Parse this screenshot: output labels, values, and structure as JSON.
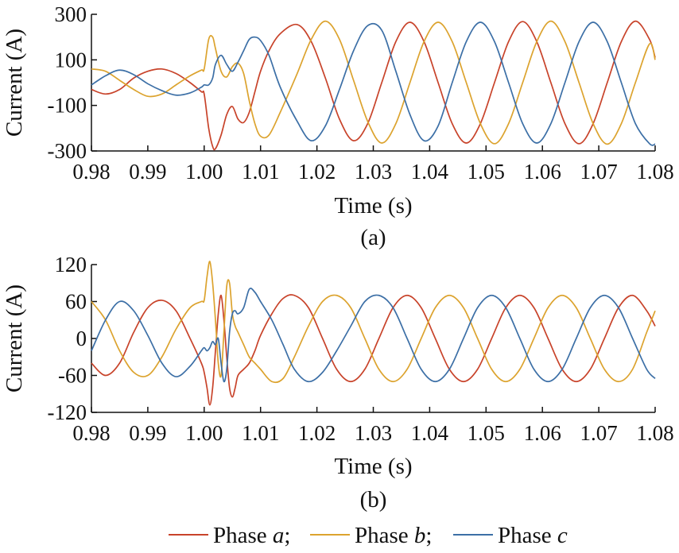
{
  "figure": {
    "legend_placement": "bottom-center",
    "legend": [
      {
        "label": "Phase ",
        "var": "a",
        "sep": ";",
        "color": "#c8432a"
      },
      {
        "label": "Phase ",
        "var": "b",
        "sep": ";",
        "color": "#dca32e"
      },
      {
        "label": "Phase ",
        "var": "c",
        "sep": "",
        "color": "#3c6fa6"
      }
    ]
  },
  "chart_data": [
    {
      "type": "line",
      "caption": "(a)",
      "xlabel": "Time (s)",
      "ylabel": "Current (A)",
      "xlim": [
        0.98,
        1.08
      ],
      "ylim": [
        -300,
        300
      ],
      "xticks": [
        "0.98",
        "0.99",
        "1.00",
        "1.01",
        "1.02",
        "1.03",
        "1.04",
        "1.05",
        "1.06",
        "1.07",
        "1.08"
      ],
      "yticks": [
        "300",
        "100",
        "-100",
        "-300"
      ],
      "ytick_values": [
        300,
        100,
        -100,
        -300
      ],
      "grid": false,
      "series": [
        {
          "name": "Phase a",
          "color": "#c8432a",
          "x": [
            0.98,
            0.9825,
            0.985,
            0.9875,
            0.99,
            0.9925,
            0.995,
            0.9975,
            0.9995,
            1.0,
            1.0008,
            1.0015,
            1.002,
            1.003,
            1.004,
            1.005,
            1.006,
            1.007,
            1.008,
            1.009,
            1.01,
            1.0115,
            1.0135,
            1.0165,
            1.019,
            1.0215,
            1.024,
            1.0265,
            1.029,
            1.0315,
            1.034,
            1.0365,
            1.039,
            1.0415,
            1.044,
            1.0465,
            1.049,
            1.0515,
            1.054,
            1.0565,
            1.059,
            1.0615,
            1.064,
            1.0665,
            1.069,
            1.0715,
            1.074,
            1.0765,
            1.079,
            1.08
          ],
          "y": [
            -30,
            -50,
            -30,
            20,
            50,
            60,
            40,
            0,
            -40,
            -50,
            -200,
            -280,
            -290,
            -230,
            -140,
            -105,
            -160,
            -175,
            -130,
            -40,
            50,
            140,
            215,
            255,
            180,
            20,
            -160,
            -255,
            -180,
            0,
            180,
            265,
            180,
            0,
            -180,
            -265,
            -180,
            0,
            180,
            268,
            180,
            0,
            -180,
            -268,
            -180,
            0,
            180,
            270,
            190,
            110
          ]
        },
        {
          "name": "Phase b",
          "color": "#dca32e",
          "x": [
            0.98,
            0.9825,
            0.985,
            0.9875,
            0.99,
            0.9925,
            0.995,
            0.9975,
            0.9995,
            1.0,
            1.0008,
            1.0015,
            1.002,
            1.003,
            1.004,
            1.005,
            1.006,
            1.007,
            1.008,
            1.009,
            1.01,
            1.0115,
            1.0135,
            1.0165,
            1.019,
            1.0215,
            1.024,
            1.0265,
            1.029,
            1.0315,
            1.034,
            1.0365,
            1.039,
            1.0415,
            1.044,
            1.0465,
            1.049,
            1.0515,
            1.054,
            1.0565,
            1.059,
            1.0615,
            1.064,
            1.0665,
            1.069,
            1.0715,
            1.074,
            1.0765,
            1.079,
            1.08
          ],
          "y": [
            60,
            50,
            10,
            -30,
            -60,
            -50,
            -10,
            30,
            55,
            60,
            190,
            200,
            150,
            50,
            25,
            70,
            85,
            40,
            -80,
            -180,
            -235,
            -230,
            -130,
            40,
            190,
            270,
            190,
            10,
            -170,
            -265,
            -180,
            0,
            180,
            265,
            180,
            0,
            -180,
            -268,
            -180,
            0,
            180,
            270,
            180,
            0,
            -180,
            -270,
            -180,
            0,
            170,
            100
          ]
        },
        {
          "name": "Phase c",
          "color": "#3c6fa6",
          "x": [
            0.98,
            0.9825,
            0.985,
            0.9875,
            0.99,
            0.9925,
            0.995,
            0.9975,
            0.9995,
            1.0,
            1.0008,
            1.0015,
            1.002,
            1.003,
            1.004,
            1.005,
            1.006,
            1.007,
            1.008,
            1.009,
            1.01,
            1.0115,
            1.0135,
            1.0165,
            1.019,
            1.0215,
            1.024,
            1.0265,
            1.029,
            1.0315,
            1.034,
            1.0365,
            1.039,
            1.0415,
            1.044,
            1.0465,
            1.049,
            1.0515,
            1.054,
            1.0565,
            1.059,
            1.0615,
            1.064,
            1.0665,
            1.069,
            1.0715,
            1.074,
            1.0765,
            1.079,
            1.08
          ],
          "y": [
            -10,
            30,
            55,
            35,
            -5,
            -35,
            -55,
            -45,
            -20,
            -10,
            -10,
            20,
            80,
            120,
            80,
            50,
            90,
            140,
            190,
            200,
            185,
            120,
            -20,
            -170,
            -255,
            -190,
            -30,
            140,
            250,
            230,
            50,
            -140,
            -255,
            -190,
            0,
            180,
            265,
            180,
            0,
            -180,
            -265,
            -180,
            0,
            180,
            265,
            180,
            0,
            -180,
            -268,
            -270
          ]
        }
      ]
    },
    {
      "type": "line",
      "caption": "(b)",
      "xlabel": "Time (s)",
      "ylabel": "Current (A)",
      "xlim": [
        0.98,
        1.08
      ],
      "ylim": [
        -120,
        120
      ],
      "xticks": [
        "0.98",
        "0.99",
        "1.00",
        "1.01",
        "1.02",
        "1.03",
        "1.04",
        "1.05",
        "1.06",
        "1.07",
        "1.08"
      ],
      "yticks": [
        "120",
        "60",
        "0",
        "-60",
        "-120"
      ],
      "ytick_values": [
        120,
        60,
        0,
        -60,
        -120
      ],
      "grid": false,
      "series": [
        {
          "name": "Phase a",
          "color": "#c8432a",
          "x": [
            0.98,
            0.9825,
            0.985,
            0.9875,
            0.99,
            0.9925,
            0.995,
            0.9975,
            0.9995,
            1.0,
            1.0005,
            1.001,
            1.0015,
            1.002,
            1.0025,
            1.003,
            1.0035,
            1.004,
            1.0045,
            1.005,
            1.0055,
            1.006,
            1.007,
            1.008,
            1.009,
            1.01,
            1.012,
            1.014,
            1.016,
            1.0185,
            1.021,
            1.0235,
            1.026,
            1.0285,
            1.031,
            1.0335,
            1.036,
            1.0385,
            1.041,
            1.0435,
            1.046,
            1.0485,
            1.051,
            1.0535,
            1.056,
            1.0585,
            1.061,
            1.0635,
            1.066,
            1.0685,
            1.071,
            1.0735,
            1.076,
            1.0785,
            1.08
          ],
          "y": [
            -40,
            -60,
            -40,
            10,
            50,
            62,
            45,
            0,
            -40,
            -55,
            -80,
            -108,
            -80,
            -20,
            40,
            70,
            30,
            -30,
            -80,
            -95,
            -80,
            -60,
            -50,
            -40,
            -20,
            5,
            40,
            65,
            70,
            50,
            0,
            -50,
            -70,
            -50,
            0,
            50,
            70,
            50,
            0,
            -50,
            -70,
            -50,
            0,
            50,
            70,
            50,
            0,
            -50,
            -70,
            -50,
            0,
            50,
            70,
            45,
            20
          ]
        },
        {
          "name": "Phase b",
          "color": "#dca32e",
          "x": [
            0.98,
            0.9825,
            0.985,
            0.9875,
            0.99,
            0.9925,
            0.995,
            0.9975,
            0.9995,
            1.0,
            1.0005,
            1.001,
            1.0015,
            1.002,
            1.0025,
            1.003,
            1.0035,
            1.004,
            1.0045,
            1.005,
            1.0055,
            1.006,
            1.007,
            1.008,
            1.009,
            1.01,
            1.012,
            1.014,
            1.016,
            1.0185,
            1.021,
            1.0235,
            1.026,
            1.0285,
            1.031,
            1.0335,
            1.036,
            1.0385,
            1.041,
            1.0435,
            1.046,
            1.0485,
            1.051,
            1.0535,
            1.056,
            1.0585,
            1.061,
            1.0635,
            1.066,
            1.0685,
            1.071,
            1.0735,
            1.076,
            1.0785,
            1.08
          ],
          "y": [
            60,
            30,
            -20,
            -55,
            -60,
            -30,
            15,
            50,
            60,
            62,
            100,
            125,
            90,
            30,
            -40,
            -60,
            10,
            85,
            90,
            40,
            20,
            10,
            -10,
            -30,
            -40,
            -50,
            -70,
            -65,
            -30,
            20,
            60,
            70,
            50,
            0,
            -50,
            -70,
            -50,
            0,
            50,
            70,
            50,
            0,
            -50,
            -70,
            -50,
            0,
            50,
            70,
            50,
            0,
            -50,
            -70,
            -50,
            10,
            45
          ]
        },
        {
          "name": "Phase c",
          "color": "#3c6fa6",
          "x": [
            0.98,
            0.9825,
            0.985,
            0.9875,
            0.99,
            0.9925,
            0.995,
            0.9975,
            0.9995,
            1.0,
            1.0005,
            1.001,
            1.0015,
            1.002,
            1.0025,
            1.003,
            1.0035,
            1.004,
            1.0045,
            1.005,
            1.0055,
            1.006,
            1.007,
            1.008,
            1.009,
            1.01,
            1.012,
            1.014,
            1.016,
            1.0185,
            1.021,
            1.0235,
            1.026,
            1.0285,
            1.031,
            1.0335,
            1.036,
            1.0385,
            1.041,
            1.0435,
            1.046,
            1.0485,
            1.051,
            1.0535,
            1.056,
            1.0585,
            1.061,
            1.0635,
            1.066,
            1.0685,
            1.071,
            1.0735,
            1.076,
            1.0785,
            1.08
          ],
          "y": [
            -20,
            30,
            60,
            45,
            5,
            -40,
            -62,
            -45,
            -20,
            -15,
            -20,
            -15,
            -5,
            -10,
            0,
            -40,
            -70,
            -50,
            10,
            40,
            45,
            40,
            50,
            80,
            75,
            60,
            30,
            -10,
            -50,
            -70,
            -55,
            -20,
            20,
            60,
            70,
            50,
            0,
            -50,
            -70,
            -50,
            0,
            50,
            70,
            50,
            0,
            -50,
            -70,
            -50,
            0,
            50,
            70,
            50,
            0,
            -50,
            -65
          ]
        }
      ]
    }
  ]
}
